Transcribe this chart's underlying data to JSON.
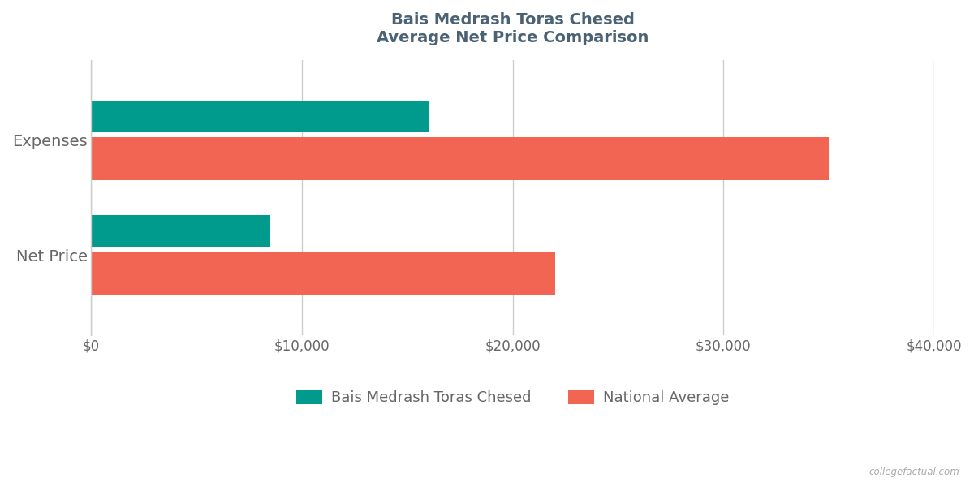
{
  "title_line1": "Bais Medrash Toras Chesed",
  "title_line2": "Average Net Price Comparison",
  "categories": [
    "Net Price",
    "Expenses"
  ],
  "school_values": [
    8500,
    16000
  ],
  "national_values": [
    22000,
    35000
  ],
  "school_color": "#009B8D",
  "national_color": "#F26552",
  "school_label": "Bais Medrash Toras Chesed",
  "national_label": "National Average",
  "xlim": [
    0,
    40000
  ],
  "xticks": [
    0,
    10000,
    20000,
    30000,
    40000
  ],
  "background_color": "#ffffff",
  "grid_color": "#cccccc",
  "title_color": "#4a6274",
  "axis_label_color": "#666666",
  "watermark": "collegefactual.com"
}
